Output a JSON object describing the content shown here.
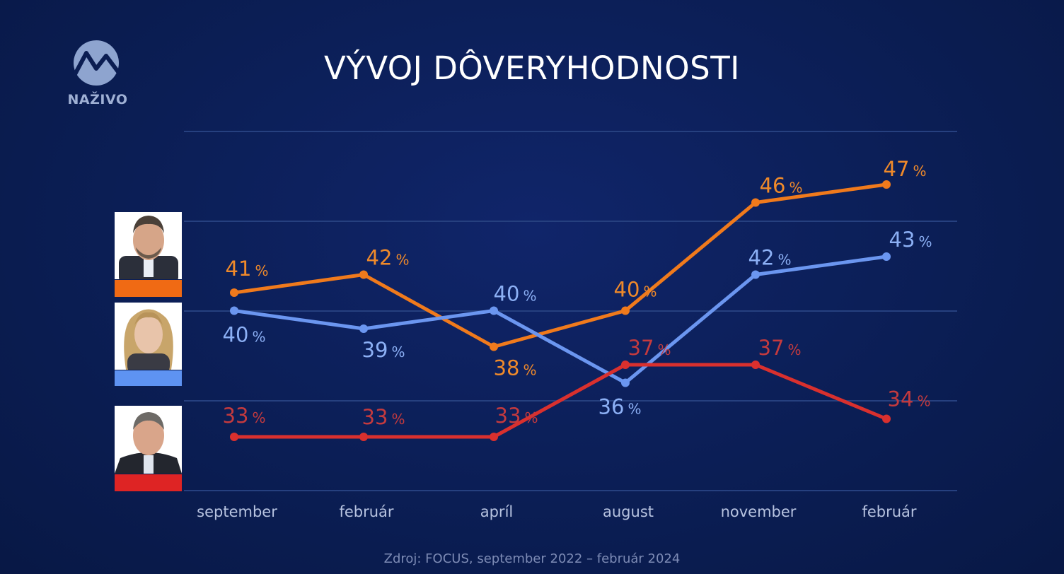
{
  "logo": {
    "label": "NAŽIVO",
    "icon": "wave-logo-icon"
  },
  "source": "Zdroj: FOCUS, september 2022 – február 2024",
  "chart_data": {
    "type": "line",
    "title": "VÝVOJ DÔVERYHODNOSTI",
    "xlabel": "",
    "ylabel": "",
    "categories": [
      "september",
      "február",
      "apríl",
      "august",
      "november",
      "február"
    ],
    "ylim": [
      28,
      48
    ],
    "grid": true,
    "value_suffix": "%",
    "legend": "left (portrait photos with color bars)",
    "series": [
      {
        "color": "#f07a1c",
        "label_color": "#f08a2a",
        "values": [
          41,
          42,
          38,
          40,
          46,
          47
        ]
      },
      {
        "color": "#6b96f0",
        "label_color": "#8cb0f5",
        "values": [
          40,
          39,
          40,
          36,
          42,
          43
        ]
      },
      {
        "color": "#d9302e",
        "label_color": "#c43a3e",
        "values": [
          33,
          33,
          33,
          37,
          37,
          34
        ]
      }
    ]
  }
}
